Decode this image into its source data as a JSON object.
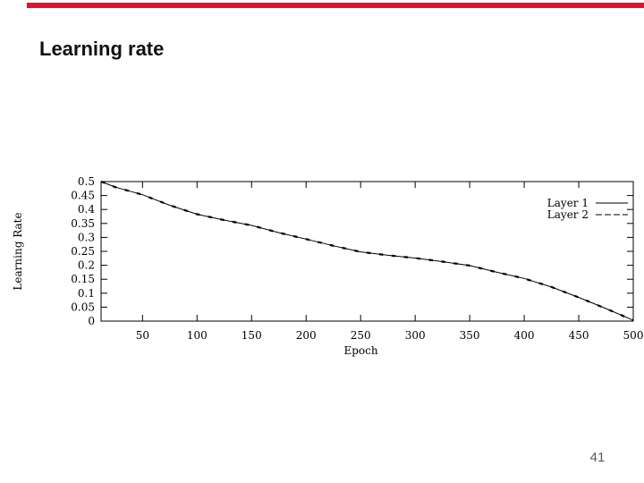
{
  "slide": {
    "title": "Learning rate",
    "page_number": "41",
    "accent_color": "#e8112d",
    "background_color": "#ffffff",
    "page_number_color": "#595959"
  },
  "chart_data": {
    "type": "line",
    "title": "",
    "xlabel": "Epoch",
    "ylabel": "Learning Rate",
    "xlim": [
      12,
      500
    ],
    "ylim": [
      0,
      0.5
    ],
    "grid": false,
    "border": "box",
    "line_color": "#000000",
    "legend_position": "top-right-inside",
    "x_ticks": {
      "values": [
        50,
        100,
        150,
        200,
        250,
        300,
        350,
        400,
        450,
        500
      ],
      "labels": [
        "50",
        "100",
        "150",
        "200",
        "250",
        "300",
        "350",
        "400",
        "450",
        "500"
      ]
    },
    "y_ticks": {
      "values": [
        0,
        0.05,
        0.1,
        0.15,
        0.2,
        0.25,
        0.3,
        0.35,
        0.4,
        0.45,
        0.5
      ],
      "labels": [
        "0",
        "0.05",
        "0.1",
        "0.15",
        "0.2",
        "0.25",
        "0.3",
        "0.35",
        "0.4",
        "0.45",
        "0.5"
      ]
    },
    "x": [
      12,
      25,
      50,
      75,
      100,
      125,
      150,
      175,
      200,
      225,
      250,
      275,
      300,
      325,
      350,
      375,
      400,
      425,
      450,
      475,
      500
    ],
    "series": [
      {
        "name": "Layer 1",
        "style": "solid",
        "values": [
          0.5,
          0.48,
          0.453,
          0.415,
          0.383,
          0.362,
          0.343,
          0.317,
          0.294,
          0.27,
          0.248,
          0.236,
          0.226,
          0.213,
          0.199,
          0.175,
          0.153,
          0.122,
          0.085,
          0.045,
          0.003
        ]
      },
      {
        "name": "Layer 2",
        "style": "dashed",
        "values": [
          0.5,
          0.48,
          0.453,
          0.415,
          0.383,
          0.362,
          0.343,
          0.317,
          0.294,
          0.27,
          0.248,
          0.236,
          0.226,
          0.213,
          0.199,
          0.175,
          0.153,
          0.122,
          0.085,
          0.045,
          0.003
        ]
      }
    ]
  }
}
